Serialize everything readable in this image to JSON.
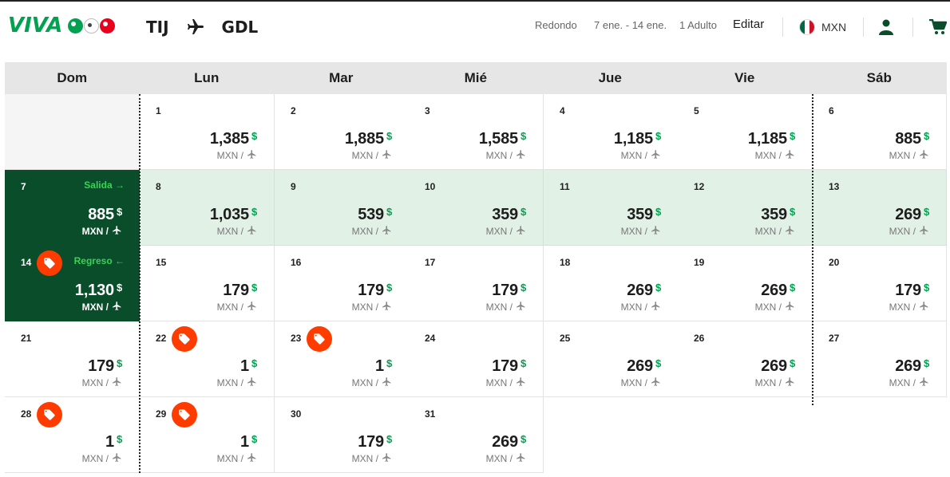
{
  "header": {
    "brand": "VIVA",
    "origin": "TIJ",
    "destination": "GDL",
    "trip_type": "Redondo",
    "dates": "7 ene. - 14 ene.",
    "passengers": "1 Adulto",
    "edit_label": "Editar",
    "currency": "MXN",
    "icons": {
      "route": "plane-icon",
      "flag": "mexico-flag-icon",
      "user": "user-icon",
      "cart": "cart-icon"
    }
  },
  "colors": {
    "brand_green": "#00a24f",
    "selected": "#0a4d2a",
    "range": "#e2f1e6",
    "tag": "#ff3c00",
    "leg_label": "#39d353"
  },
  "weekdays": [
    "Dom",
    "Lun",
    "Mar",
    "Mié",
    "Jue",
    "Vie",
    "Sáb"
  ],
  "currency_symbol": "$",
  "unit_label": "MXN /",
  "calendar": {
    "days": [
      {
        "day": "1",
        "price": "1,385"
      },
      {
        "day": "2",
        "price": "1,885"
      },
      {
        "day": "3",
        "price": "1,585"
      },
      {
        "day": "4",
        "price": "1,185"
      },
      {
        "day": "5",
        "price": "1,185"
      },
      {
        "day": "6",
        "price": "885"
      },
      {
        "day": "7",
        "price": "885",
        "state": "selected",
        "leg": "Salida",
        "leg_arrow": "→"
      },
      {
        "day": "8",
        "price": "1,035",
        "state": "range"
      },
      {
        "day": "9",
        "price": "539",
        "state": "range"
      },
      {
        "day": "10",
        "price": "359",
        "state": "range"
      },
      {
        "day": "11",
        "price": "359",
        "state": "range"
      },
      {
        "day": "12",
        "price": "359",
        "state": "range"
      },
      {
        "day": "13",
        "price": "269",
        "state": "range"
      },
      {
        "day": "14",
        "price": "1,130",
        "state": "selected",
        "leg": "Regreso",
        "leg_arrow": "←",
        "promo": true
      },
      {
        "day": "15",
        "price": "179"
      },
      {
        "day": "16",
        "price": "179"
      },
      {
        "day": "17",
        "price": "179"
      },
      {
        "day": "18",
        "price": "269"
      },
      {
        "day": "19",
        "price": "269"
      },
      {
        "day": "20",
        "price": "179"
      },
      {
        "day": "21",
        "price": "179"
      },
      {
        "day": "22",
        "price": "1",
        "promo": true
      },
      {
        "day": "23",
        "price": "1",
        "promo": true
      },
      {
        "day": "24",
        "price": "179"
      },
      {
        "day": "25",
        "price": "269"
      },
      {
        "day": "26",
        "price": "269"
      },
      {
        "day": "27",
        "price": "269"
      },
      {
        "day": "28",
        "price": "1",
        "promo": true
      },
      {
        "day": "29",
        "price": "1",
        "promo": true
      },
      {
        "day": "30",
        "price": "179"
      },
      {
        "day": "31",
        "price": "269"
      }
    ]
  }
}
